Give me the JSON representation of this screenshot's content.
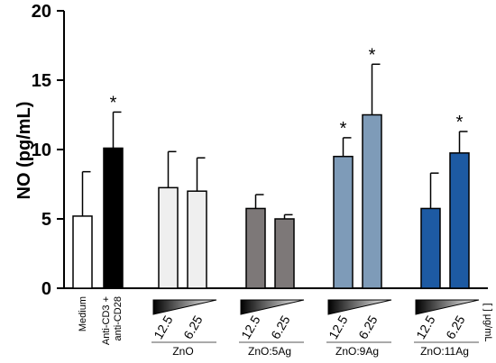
{
  "chart_data": {
    "type": "bar",
    "ylabel": "NO (pg/mL)",
    "ylim": [
      0,
      20
    ],
    "yticks": [
      "0",
      "5",
      "10",
      "15",
      "20"
    ],
    "bars": [
      {
        "label": "Medium",
        "value": 5.2,
        "error": 3.2,
        "color": "#ffffff",
        "significant": false
      },
      {
        "label": "Anti-CD3 + anti-CD28",
        "value": 10.1,
        "error": 2.6,
        "color": "#000000",
        "significant": true
      },
      {
        "label": "12.5",
        "group": "ZnO",
        "value": 7.25,
        "error": 2.6,
        "color": "#efefef",
        "significant": false
      },
      {
        "label": "6.25",
        "group": "ZnO",
        "value": 7.0,
        "error": 2.4,
        "color": "#efefef",
        "significant": false
      },
      {
        "label": "12.5",
        "group": "ZnO:5Ag",
        "value": 5.75,
        "error": 1.0,
        "color": "#7d7878",
        "significant": false
      },
      {
        "label": "6.25",
        "group": "ZnO:5Ag",
        "value": 5.0,
        "error": 0.3,
        "color": "#7d7878",
        "significant": false
      },
      {
        "label": "12.5",
        "group": "ZnO:9Ag",
        "value": 9.5,
        "error": 1.35,
        "color": "#7e9bb8",
        "significant": true
      },
      {
        "label": "6.25",
        "group": "ZnO:9Ag",
        "value": 12.5,
        "error": 3.65,
        "color": "#7e9bb8",
        "significant": true
      },
      {
        "label": "12.5",
        "group": "ZnO:11Ag",
        "value": 5.75,
        "error": 2.55,
        "color": "#1d5aa3",
        "significant": false
      },
      {
        "label": "6.25",
        "group": "ZnO:11Ag",
        "value": 9.75,
        "error": 1.55,
        "color": "#1d5aa3",
        "significant": true
      }
    ],
    "control_labels": {
      "medium": "Medium",
      "anti_line1": "Anti-CD3 +",
      "anti_line2": "anti-CD28"
    },
    "groups": [
      "ZnO",
      "ZnO:5Ag",
      "ZnO:9Ag",
      "ZnO:11Ag"
    ],
    "concentrations": [
      "12.5",
      "6.25"
    ],
    "unit_label": "[ ] μg/mL",
    "significance_marker": "*"
  }
}
